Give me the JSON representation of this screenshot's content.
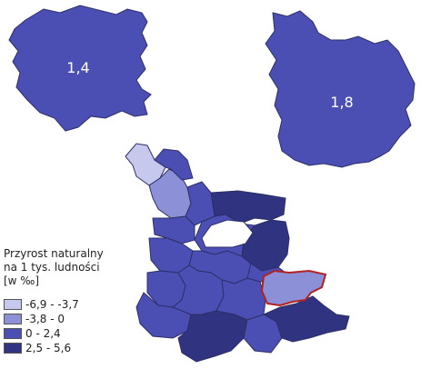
{
  "legend": {
    "title_line1": "Przyrost naturalny",
    "title_line2": "na 1 tys. ludności",
    "title_line3": "[w ‰]",
    "classes": [
      {
        "label": "-6,9 - -3,7",
        "color": "#c6c8ee"
      },
      {
        "label": "-3,8 - 0",
        "color": "#8c90d6"
      },
      {
        "label": "0 - 2,4",
        "color": "#4b4fb4"
      },
      {
        "label": "2,5 - 5,6",
        "color": "#2f3380"
      }
    ]
  },
  "regions": {
    "left_value": "1,4",
    "right_value": "1,8"
  },
  "highlight_color": "#b22222"
}
